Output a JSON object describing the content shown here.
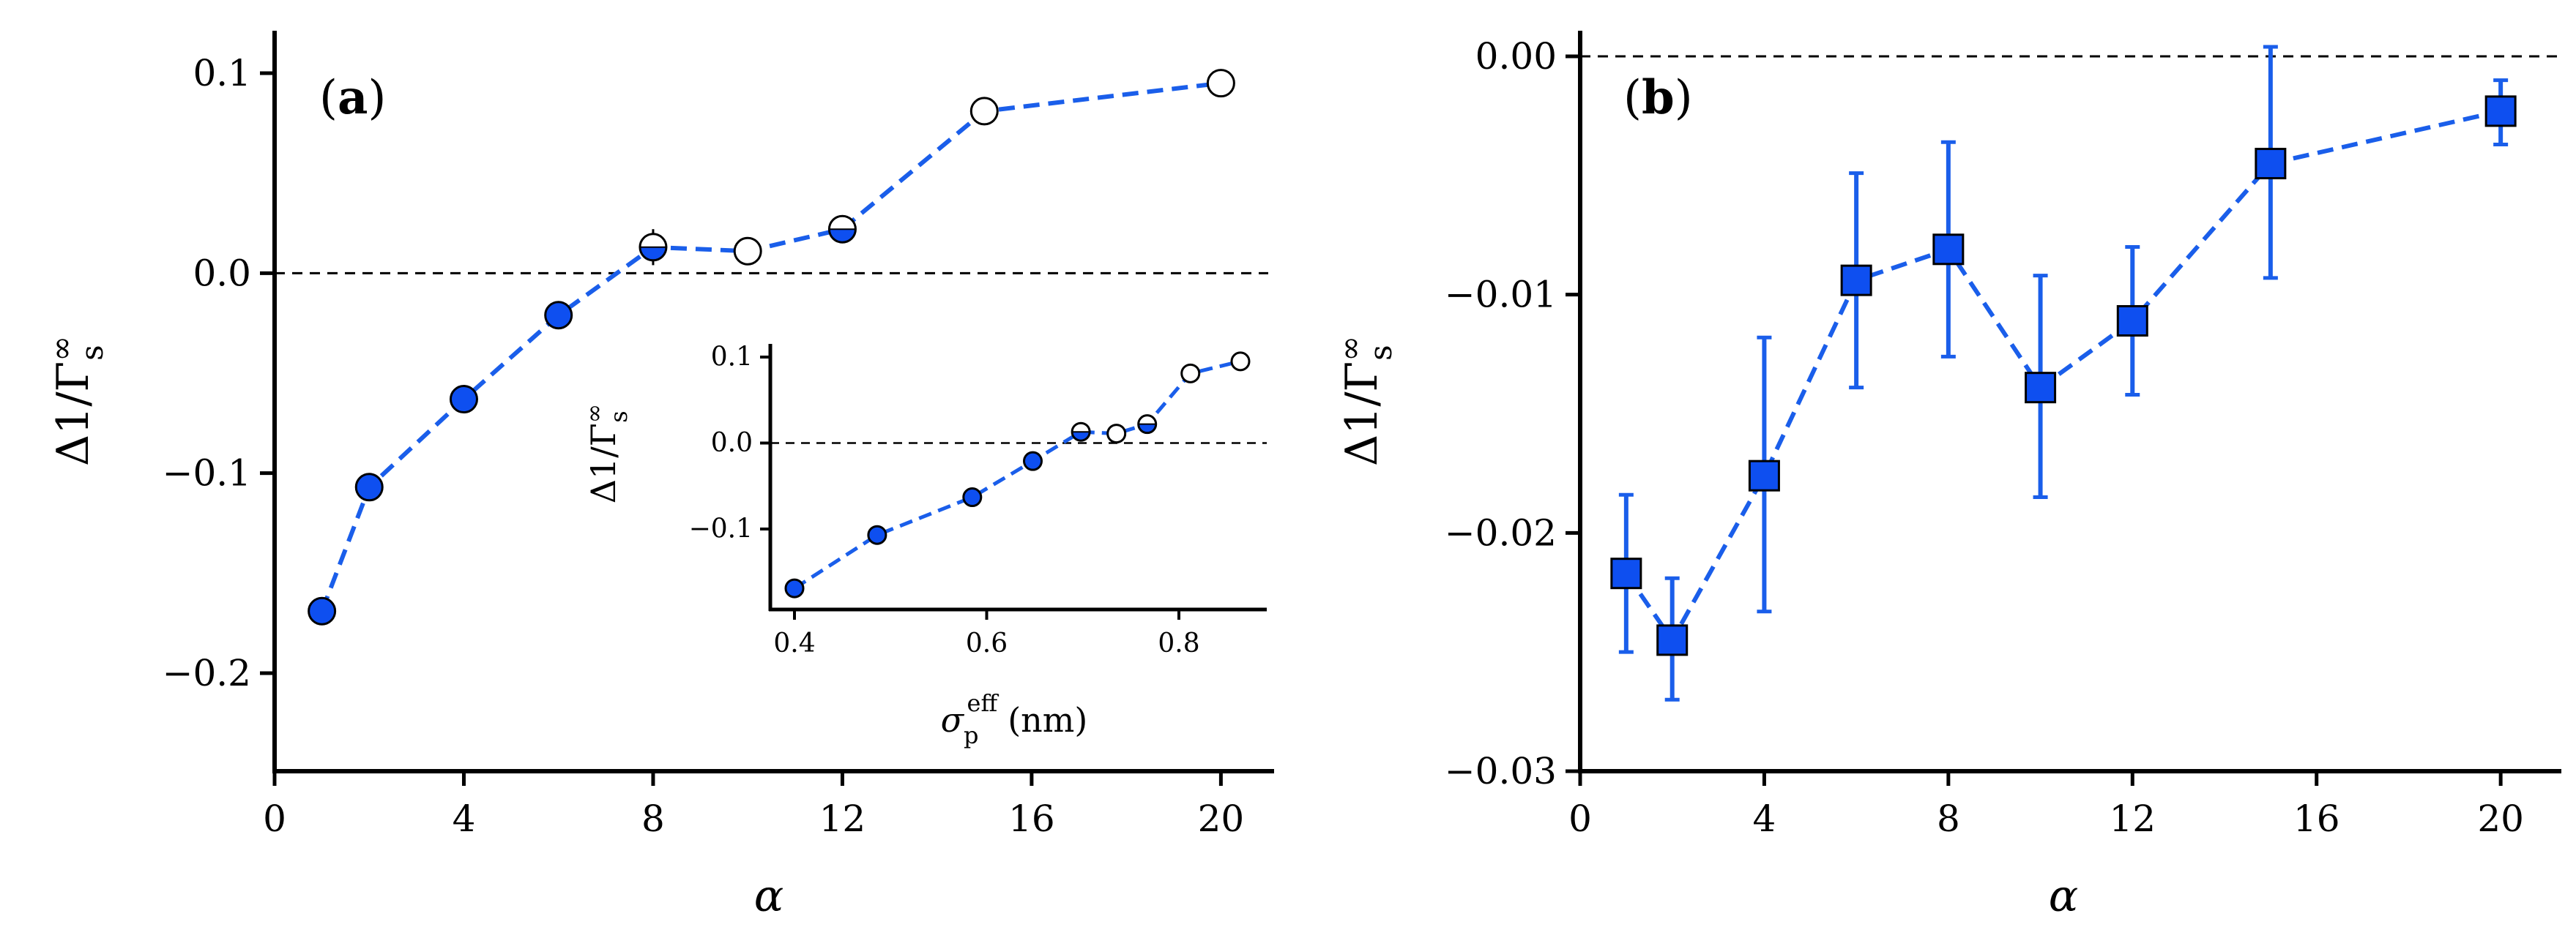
{
  "colors": {
    "series": "#1a5eea",
    "marker_fill": "#0e4ff0",
    "open_fill": "#ffffff",
    "edge": "#000000",
    "zero_line": "#000000"
  },
  "chart_data": [
    {
      "type": "scatter",
      "panel_prefix": "(",
      "panel_letter": "a",
      "panel_suffix": ")",
      "xlabel": "α",
      "ylabel_prefix": "Δ1/Γ",
      "ylabel_sup": "∞",
      "ylabel_sub": "s",
      "xlim": [
        0,
        21
      ],
      "ylim": [
        -0.25,
        0.12
      ],
      "xticks": [
        0,
        4,
        8,
        12,
        16,
        20
      ],
      "xtick_labels": [
        "0",
        "4",
        "8",
        "12",
        "16",
        "20"
      ],
      "yticks": [
        -0.2,
        -0.1,
        0.0,
        0.1
      ],
      "ytick_labels": [
        "−0.2",
        "−0.1",
        "0.0",
        "0.1"
      ],
      "reference_line_y": 0.0,
      "series": [
        {
          "name": "Δ1/Γs∞ vs α",
          "x": [
            1,
            2,
            4,
            6,
            8,
            10,
            12,
            15,
            20
          ],
          "y": [
            -0.169,
            -0.107,
            -0.063,
            -0.021,
            0.013,
            0.011,
            0.022,
            0.081,
            0.095
          ],
          "error": [
            0.002,
            0.002,
            0.002,
            0.002,
            0.009,
            0.003,
            0.006,
            0.007,
            0.002
          ],
          "marker_style": [
            "filled",
            "filled",
            "filled",
            "filled",
            "half",
            "open",
            "half",
            "open",
            "open"
          ]
        }
      ],
      "inset": {
        "xlabel_prefix": "σ",
        "xlabel_sub": "p",
        "xlabel_sup": "eff",
        "xlabel_unit": "(nm)",
        "ylabel_prefix": "Δ1/Γ",
        "ylabel_sup": "∞",
        "ylabel_sub": "s",
        "xlim": [
          0.37,
          0.88
        ],
        "ylim": [
          -0.19,
          0.115
        ],
        "xticks": [
          0.4,
          0.6,
          0.8
        ],
        "xtick_labels": [
          "0.4",
          "0.6",
          "0.8"
        ],
        "yticks": [
          -0.1,
          0.0,
          0.1
        ],
        "ytick_labels": [
          "−0.1",
          "0.0",
          "0.1"
        ],
        "reference_line_y": 0.0,
        "series": [
          {
            "name": "Δ1/Γs∞ vs σp eff",
            "x": [
              0.4,
              0.486,
              0.585,
              0.648,
              0.698,
              0.735,
              0.767,
              0.812,
              0.864
            ],
            "y": [
              -0.169,
              -0.107,
              -0.063,
              -0.021,
              0.013,
              0.011,
              0.022,
              0.081,
              0.095
            ],
            "marker_style": [
              "filled",
              "filled",
              "filled",
              "filled",
              "half",
              "open",
              "half",
              "open",
              "open"
            ]
          }
        ]
      }
    },
    {
      "type": "scatter",
      "panel_prefix": "(",
      "panel_letter": "b",
      "panel_suffix": ")",
      "xlabel": "α",
      "ylabel_prefix": "Δ1/Γ",
      "ylabel_sup": "∞",
      "ylabel_sub": "s",
      "xlim": [
        0,
        21
      ],
      "ylim": [
        -0.03,
        0.001
      ],
      "xticks": [
        0,
        4,
        8,
        12,
        16,
        20
      ],
      "xtick_labels": [
        "0",
        "4",
        "8",
        "12",
        "16",
        "20"
      ],
      "yticks": [
        -0.03,
        -0.02,
        -0.01,
        0.0
      ],
      "ytick_labels": [
        "−0.03",
        "−0.02",
        "−0.01",
        "0.00"
      ],
      "reference_line_y": 0.0,
      "series": [
        {
          "name": "Δ1/Γs∞ vs α",
          "x": [
            1,
            2,
            4,
            6,
            8,
            10,
            12,
            15,
            20
          ],
          "y": [
            -0.0217,
            -0.0245,
            -0.0176,
            -0.0094,
            -0.0081,
            -0.0139,
            -0.0111,
            -0.0045,
            -0.0023
          ],
          "err_low": [
            0.0033,
            0.0025,
            0.0057,
            0.0045,
            0.0045,
            0.0046,
            0.0031,
            0.0048,
            0.0014
          ],
          "err_high": [
            0.0033,
            0.0026,
            0.0058,
            0.0045,
            0.0045,
            0.0047,
            0.0031,
            0.0049,
            0.0013
          ],
          "marker_style": [
            "square",
            "square",
            "square",
            "square",
            "square",
            "square",
            "square",
            "square",
            "square"
          ]
        }
      ]
    }
  ]
}
